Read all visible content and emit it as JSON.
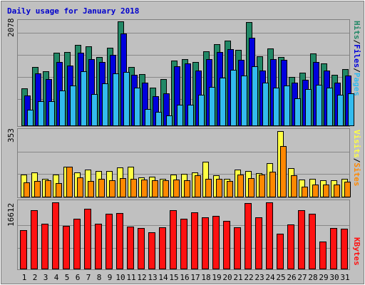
{
  "chart_data": {
    "type": "bar",
    "title": "Daily usage for January 2018",
    "categories": [
      "1",
      "2",
      "3",
      "4",
      "5",
      "6",
      "7",
      "8",
      "9",
      "10",
      "11",
      "12",
      "13",
      "14",
      "15",
      "16",
      "17",
      "18",
      "19",
      "20",
      "21",
      "22",
      "23",
      "24",
      "25",
      "26",
      "27",
      "28",
      "29",
      "30",
      "31"
    ],
    "weekend_days": [
      "6",
      "7",
      "13",
      "14",
      "20",
      "21",
      "27",
      "28"
    ],
    "panels": [
      {
        "name": "hits_files_pages",
        "ymax": 2078,
        "ymax_label": "2078",
        "series": [
          {
            "name": "Hits",
            "color": "#228866",
            "values": [
              752,
              1177,
              1094,
              1452,
              1473,
              1608,
              1586,
              1368,
              1554,
              2078,
              1180,
              1032,
              760,
              938,
              1302,
              1334,
              1269,
              1487,
              1621,
              1698,
              1514,
              2059,
              1383,
              1546,
              1367,
              974,
              1056,
              1447,
              1249,
              1012,
              1125
            ]
          },
          {
            "name": "Files",
            "color": "#0000dd",
            "values": [
              608,
              1043,
              937,
              1270,
              1198,
              1451,
              1322,
              1266,
              1414,
              1837,
              1022,
              865,
              590,
              656,
              1185,
              1249,
              1104,
              1331,
              1474,
              1527,
              1314,
              1756,
              1099,
              1329,
              1308,
              867,
              920,
              1279,
              1104,
              863,
              998
            ]
          },
          {
            "name": "Pages",
            "color": "#33bbee",
            "values": [
              324,
              489,
              489,
              711,
              804,
              1083,
              631,
              855,
              1051,
              1075,
              767,
              346,
              288,
              213,
              424,
              421,
              627,
              779,
              962,
              1110,
              1000,
              1190,
              863,
              759,
              809,
              555,
              735,
              826,
              760,
              624,
              650
            ]
          }
        ]
      },
      {
        "name": "sites_visits",
        "ymax": 353,
        "ymax_label": "353",
        "series": [
          {
            "name": "Visits",
            "color": "#ffff44",
            "values": [
              121,
              132,
              98,
              121,
              165,
              132,
              148,
              142,
              139,
              159,
              162,
              106,
              110,
              98,
              121,
              124,
              134,
              190,
              116,
              99,
              148,
              141,
              129,
              181,
              353,
              154,
              93,
              99,
              91,
              91,
              98
            ]
          },
          {
            "name": "Sites",
            "color": "#ff8800",
            "values": [
              81,
              88,
              91,
              77,
              162,
              105,
              88,
              97,
              91,
              102,
              99,
              95,
              91,
              91,
              93,
              91,
              116,
              98,
              97,
              87,
              120,
              101,
              120,
              136,
              272,
              116,
              58,
              70,
              70,
              70,
              82
            ]
          }
        ]
      },
      {
        "name": "kbytes",
        "ymax": 16612,
        "ymax_label": "16612",
        "series": [
          {
            "name": "KBytes",
            "color": "#ff1111",
            "values": [
              9780,
              14660,
              11230,
              16612,
              10860,
              12480,
              14990,
              11230,
              13860,
              13880,
              10550,
              10300,
              9230,
              10420,
              14600,
              12500,
              14110,
              12850,
              13310,
              11960,
              10440,
              16406,
              12920,
              16612,
              8920,
              11200,
              14620,
              13860,
              6850,
              10300,
              10110
            ]
          }
        ]
      }
    ],
    "legend_side": [
      "Pages",
      "/",
      "Files",
      "/",
      "Hits",
      "Sites",
      "/",
      "Visits",
      "KBytes"
    ],
    "legend_colors": {
      "Pages": "#33bbee",
      "Files": "#0000dd",
      "Hits": "#228866",
      "Sites": "#ff8800",
      "Visits": "#ffff44",
      "KBytes": "#ff1111",
      "/": "#000000"
    }
  },
  "colors": {
    "bg": "#c0c0c0",
    "frame_light": "#ffffff",
    "frame_dark": "#808080",
    "grid": "#888888",
    "title": "#0000cc",
    "weekday_label": "#000000",
    "weekend_label": "#007744"
  }
}
